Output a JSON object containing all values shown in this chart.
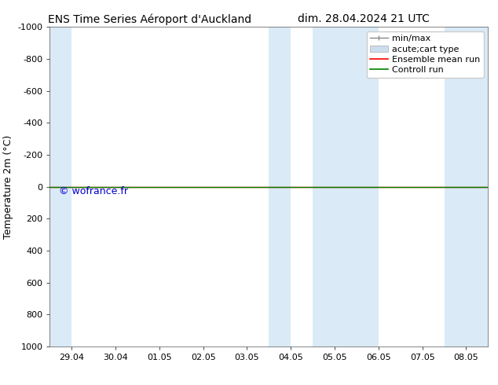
{
  "title_left": "ENS Time Series Aéroport d'Auckland",
  "title_right": "dim. 28.04.2024 21 UTC",
  "ylabel": "Temperature 2m (°C)",
  "watermark": "© wofrance.fr",
  "watermark_color": "#0000cc",
  "background_color": "#ffffff",
  "plot_bg_color": "#ffffff",
  "ylim_bottom": 1000,
  "ylim_top": -1000,
  "yticks": [
    -1000,
    -800,
    -600,
    -400,
    -200,
    0,
    200,
    400,
    600,
    800,
    1000
  ],
  "xtick_labels": [
    "29.04",
    "30.04",
    "01.05",
    "02.05",
    "03.05",
    "04.05",
    "05.05",
    "06.05",
    "07.05",
    "08.05"
  ],
  "xlim_left": -0.5,
  "xlim_right": 9.5,
  "shade_color": "#daeaf7",
  "shade_bands": [
    [
      -0.5,
      0.0
    ],
    [
      4.5,
      5.0
    ],
    [
      5.5,
      7.0
    ],
    [
      8.5,
      9.5
    ]
  ],
  "horizontal_line_y": 0,
  "line_color_ensemble": "#ff0000",
  "line_color_control": "#008000",
  "font_size_title": 10,
  "font_size_ticks": 8,
  "font_size_legend": 8,
  "font_size_ylabel": 9,
  "font_size_watermark": 9
}
